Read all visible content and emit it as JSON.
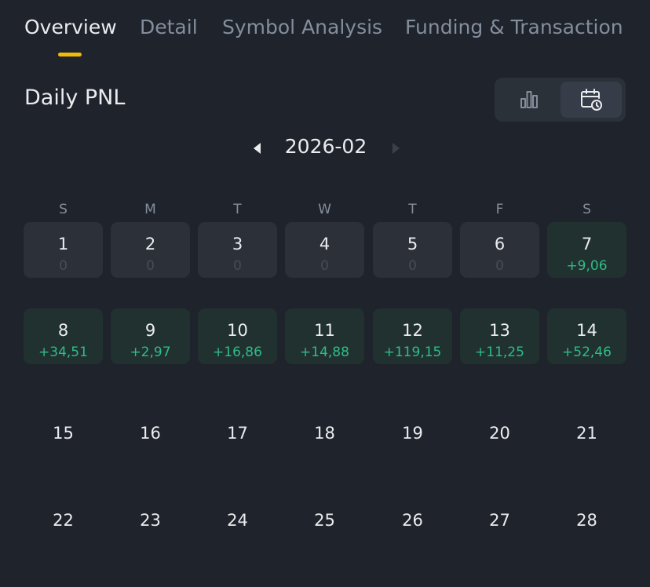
{
  "tabs": [
    {
      "label": "Overview",
      "active": true
    },
    {
      "label": "Detail",
      "active": false
    },
    {
      "label": "Symbol Analysis",
      "active": false
    },
    {
      "label": "Funding & Transaction",
      "active": false
    }
  ],
  "section_title": "Daily PNL",
  "view_toggle": {
    "options": [
      {
        "icon": "bar-chart-icon",
        "selected": false
      },
      {
        "icon": "calendar-clock-icon",
        "selected": true
      }
    ]
  },
  "month": {
    "label": "2026-02",
    "prev_icon": "caret-left-icon",
    "next_icon": "caret-right-icon",
    "next_enabled": false
  },
  "weekdays": [
    "S",
    "M",
    "T",
    "W",
    "T",
    "F",
    "S"
  ],
  "days": [
    {
      "day": "1",
      "pnl": "0",
      "state": "neutral"
    },
    {
      "day": "2",
      "pnl": "0",
      "state": "neutral"
    },
    {
      "day": "3",
      "pnl": "0",
      "state": "neutral"
    },
    {
      "day": "4",
      "pnl": "0",
      "state": "neutral"
    },
    {
      "day": "5",
      "pnl": "0",
      "state": "neutral"
    },
    {
      "day": "6",
      "pnl": "0",
      "state": "neutral"
    },
    {
      "day": "7",
      "pnl": "+9,06",
      "state": "gain"
    },
    {
      "day": "8",
      "pnl": "+34,51",
      "state": "gain"
    },
    {
      "day": "9",
      "pnl": "+2,97",
      "state": "gain"
    },
    {
      "day": "10",
      "pnl": "+16,86",
      "state": "gain"
    },
    {
      "day": "11",
      "pnl": "+14,88",
      "state": "gain"
    },
    {
      "day": "12",
      "pnl": "+119,15",
      "state": "gain"
    },
    {
      "day": "13",
      "pnl": "+11,25",
      "state": "gain"
    },
    {
      "day": "14",
      "pnl": "+52,46",
      "state": "gain"
    },
    {
      "day": "15",
      "state": "empty"
    },
    {
      "day": "16",
      "state": "empty"
    },
    {
      "day": "17",
      "state": "empty"
    },
    {
      "day": "18",
      "state": "empty"
    },
    {
      "day": "19",
      "state": "empty"
    },
    {
      "day": "20",
      "state": "empty"
    },
    {
      "day": "21",
      "state": "empty"
    },
    {
      "day": "22",
      "state": "empty"
    },
    {
      "day": "23",
      "state": "empty"
    },
    {
      "day": "24",
      "state": "empty"
    },
    {
      "day": "25",
      "state": "empty"
    },
    {
      "day": "26",
      "state": "empty"
    },
    {
      "day": "27",
      "state": "empty"
    },
    {
      "day": "28",
      "state": "empty"
    }
  ],
  "colors": {
    "background": "#1f232b",
    "accent": "#f0b90b",
    "gain_text": "#2ebd85",
    "gain_cell": "#213130",
    "neutral_cell": "#2b3039",
    "muted_text": "#848e9c"
  }
}
